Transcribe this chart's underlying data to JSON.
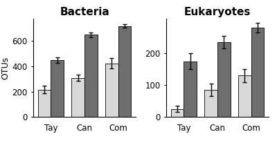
{
  "bacteria": {
    "title": "Bacteria",
    "categories": [
      "Tay",
      "Can",
      "Com"
    ],
    "water_values": [
      215,
      310,
      425
    ],
    "water_errors": [
      30,
      25,
      40
    ],
    "sediment_values": [
      450,
      650,
      720
    ],
    "sediment_errors": [
      20,
      20,
      15
    ],
    "ylim": [
      0,
      780
    ],
    "yticks": [
      0,
      200,
      400,
      600
    ],
    "ylabel": "OTUs"
  },
  "eukaryotes": {
    "title": "Eukaryotes",
    "categories": [
      "Tay",
      "Can",
      "Com"
    ],
    "water_values": [
      25,
      85,
      130
    ],
    "water_errors": [
      10,
      20,
      20
    ],
    "sediment_values": [
      175,
      235,
      280
    ],
    "sediment_errors": [
      25,
      20,
      15
    ],
    "ylim": [
      0,
      310
    ],
    "yticks": [
      0,
      100,
      200
    ],
    "ylabel": ""
  },
  "bar_width": 0.38,
  "water_color": "#d8d8d8",
  "sediment_color": "#6e6e6e",
  "error_color": "#000000",
  "title_fontsize": 11,
  "tick_fontsize": 8.5,
  "ylabel_fontsize": 9,
  "background_color": "#ffffff"
}
